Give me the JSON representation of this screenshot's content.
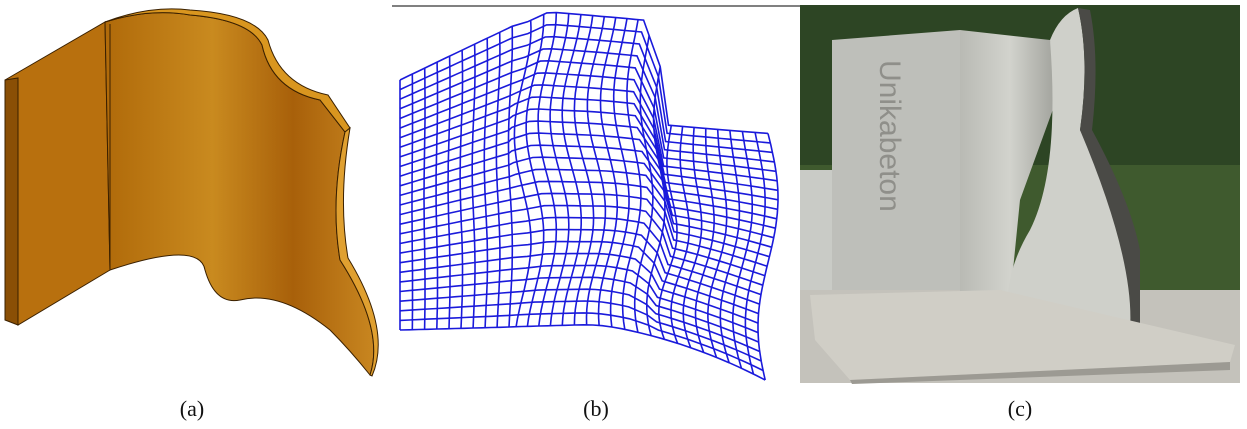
{
  "panels": [
    {
      "caption": "(a)"
    },
    {
      "caption": "(b)"
    },
    {
      "caption": "(c)",
      "engraving": "Unikabeton"
    }
  ]
}
